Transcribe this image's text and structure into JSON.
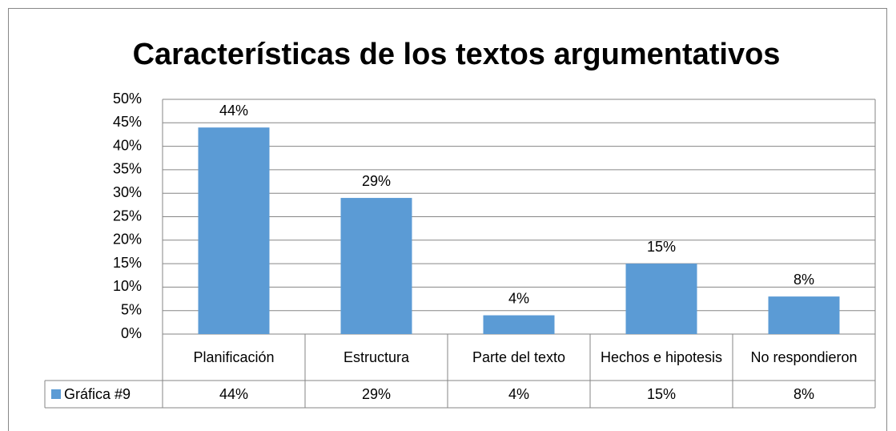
{
  "chart_data": {
    "type": "bar",
    "title": "Características de los textos argumentativos",
    "categories": [
      "Planificación",
      "Estructura",
      "Parte del texto",
      "Hechos e hipotesis",
      "No respondieron"
    ],
    "series": [
      {
        "name": "Gráfica #9",
        "color": "#5b9bd5",
        "values": [
          44,
          29,
          4,
          15,
          8
        ],
        "value_labels": [
          "44%",
          "29%",
          "4%",
          "15%",
          "8%"
        ]
      }
    ],
    "ylim": [
      0,
      50
    ],
    "yticks": [
      {
        "value": 0,
        "label": "0%"
      },
      {
        "value": 5,
        "label": "5%"
      },
      {
        "value": 10,
        "label": "10%"
      },
      {
        "value": 15,
        "label": "15%"
      },
      {
        "value": 20,
        "label": "20%"
      },
      {
        "value": 25,
        "label": "25%"
      },
      {
        "value": 30,
        "label": "30%"
      },
      {
        "value": 35,
        "label": "35%"
      },
      {
        "value": 40,
        "label": "40%"
      },
      {
        "value": 45,
        "label": "45%"
      },
      {
        "value": 50,
        "label": "50%"
      }
    ],
    "grid": true,
    "data_table": true
  }
}
